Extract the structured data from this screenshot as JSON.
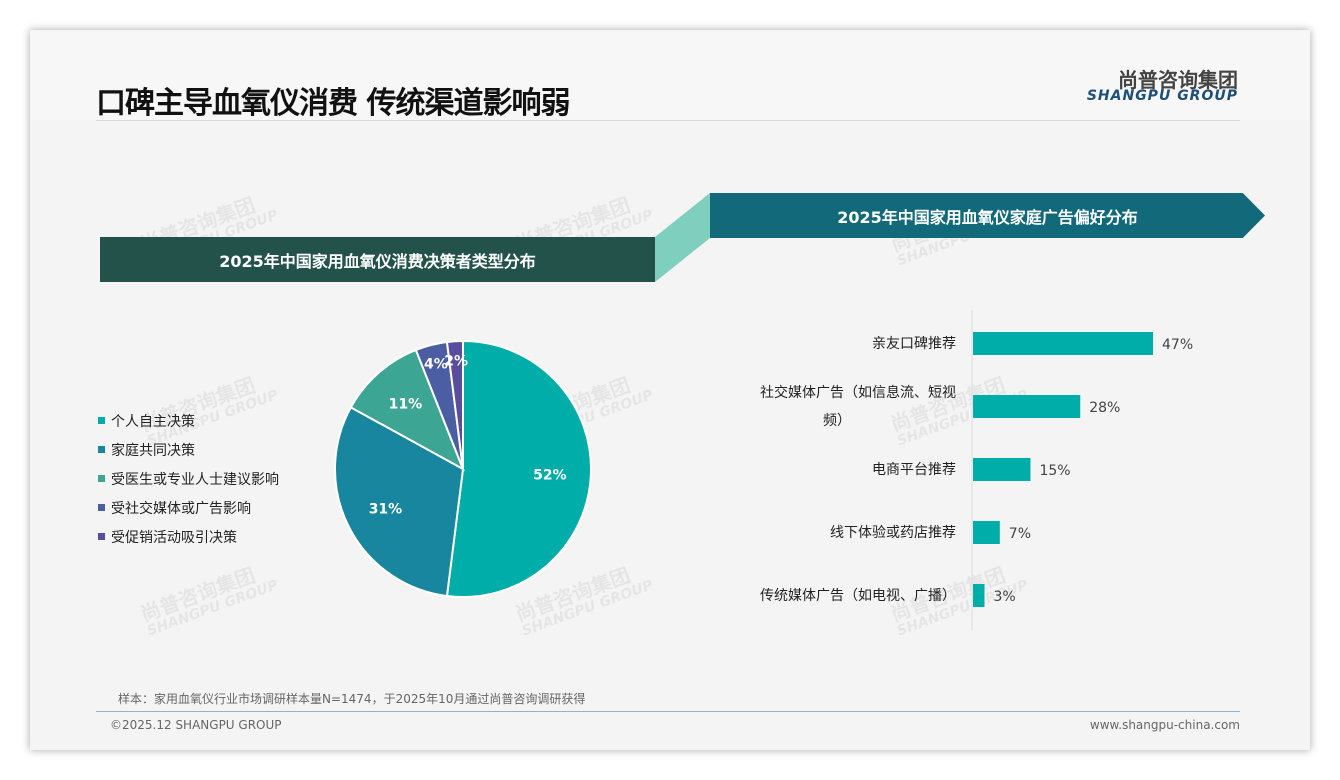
{
  "title": "口碑主导血氧仪消费 传统渠道影响弱",
  "logo": {
    "cn": "尚普咨询集团",
    "en": "SHANGPU GROUP"
  },
  "footer": {
    "note": "样本：家用血氧仪行业市场调研样本量N=1474，于2025年10月通过尚普咨询调研获得",
    "copyright": "©2025.12 SHANGPU GROUP",
    "url": "www.shangpu-china.com"
  },
  "chart_data": [
    {
      "type": "pie",
      "title": "2025年中国家用血氧仪消费决策者类型分布",
      "categories": [
        "个人自主决策",
        "家庭共同决策",
        "受医生或专业人士建议影响",
        "受社交媒体或广告影响",
        "受促销活动吸引决策"
      ],
      "values": [
        52,
        31,
        11,
        4,
        2
      ],
      "labels": [
        "52%",
        "31%",
        "11%",
        "4%",
        "2%"
      ],
      "colors": [
        "#00ada8",
        "#17869e",
        "#3da594",
        "#4b5ea4",
        "#5a4d9e"
      ],
      "legend": "left"
    },
    {
      "type": "bar",
      "orientation": "horizontal",
      "title": "2025年中国家用血氧仪家庭广告偏好分布",
      "categories": [
        "亲友口碑推荐",
        "社交媒体广告（如信息流、短视频）",
        "电商平台推荐",
        "线下体验或药店推荐",
        "传统媒体广告（如电视、广播）"
      ],
      "category_lines": [
        [
          "亲友口碑推荐"
        ],
        [
          "社交媒体广告（如信息流、短视",
          "频）"
        ],
        [
          "电商平台推荐"
        ],
        [
          "线下体验或药店推荐"
        ],
        [
          "传统媒体广告（如电视、广播）"
        ]
      ],
      "values": [
        47,
        28,
        15,
        7,
        3
      ],
      "labels": [
        "47%",
        "28%",
        "15%",
        "7%",
        "3%"
      ],
      "color": "#00ada8",
      "xlim": [
        0,
        100
      ]
    }
  ]
}
